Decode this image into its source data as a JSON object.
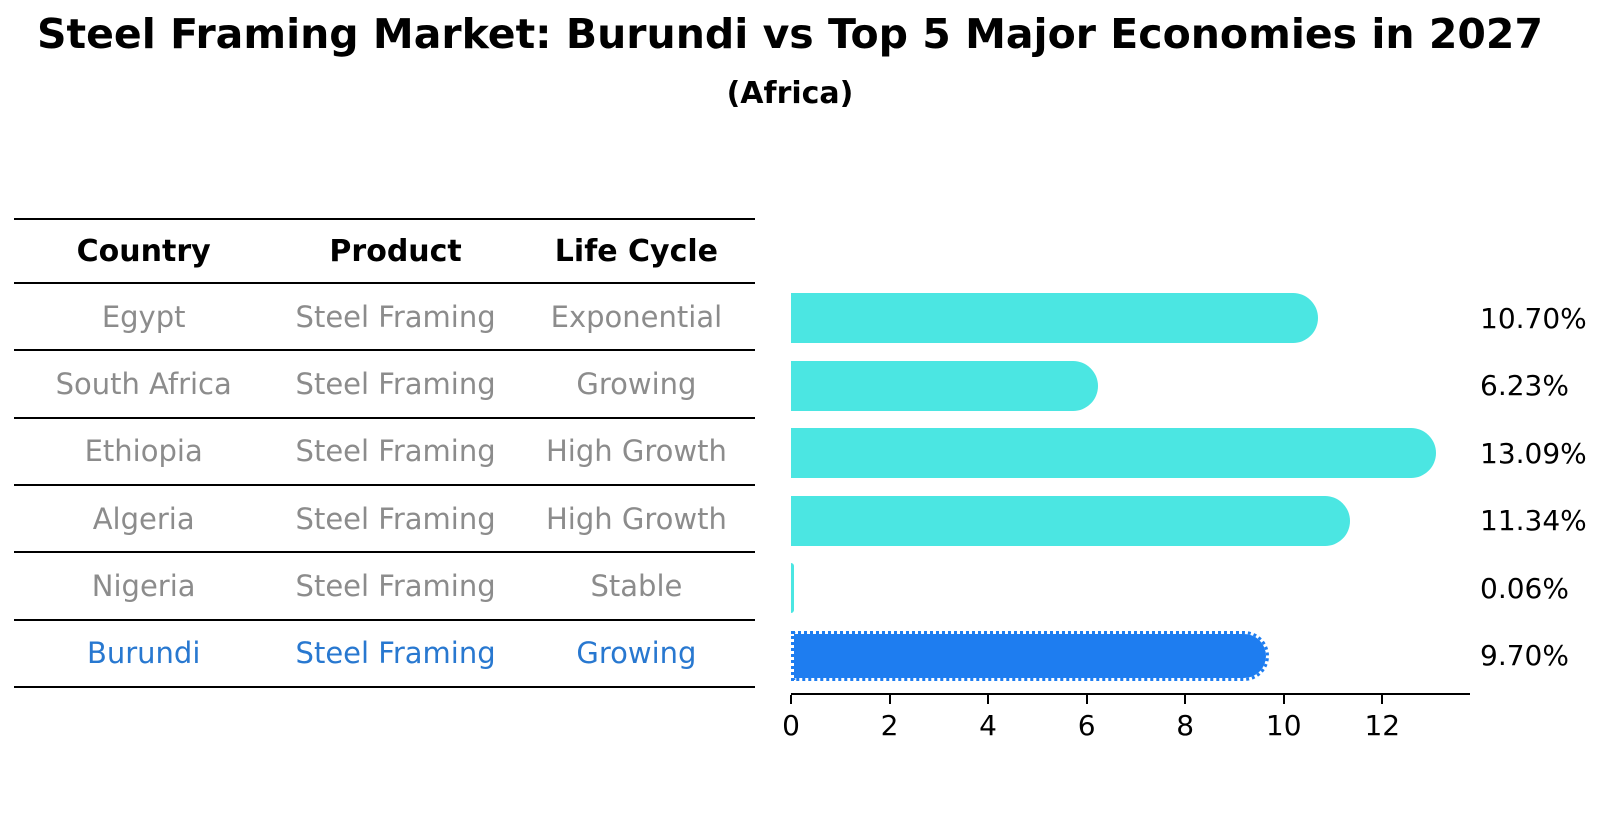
{
  "title": "Steel Framing Market: Burundi vs Top 5 Major Economies in 2027",
  "subtitle": "(Africa)",
  "table": {
    "headers": [
      "Country",
      "Product",
      "Life Cycle"
    ],
    "rows": [
      {
        "country": "Egypt",
        "product": "Steel Framing",
        "life_cycle": "Exponential"
      },
      {
        "country": "South Africa",
        "product": "Steel Framing",
        "life_cycle": "Growing"
      },
      {
        "country": "Ethiopia",
        "product": "Steel Framing",
        "life_cycle": "High Growth"
      },
      {
        "country": "Algeria",
        "product": "Steel Framing",
        "life_cycle": "High Growth"
      },
      {
        "country": "Nigeria",
        "product": "Steel Framing",
        "life_cycle": "Stable"
      },
      {
        "country": "Burundi",
        "product": "Steel Framing",
        "life_cycle": "Growing"
      }
    ]
  },
  "chart_data": {
    "type": "bar",
    "orientation": "horizontal",
    "title": "Steel Framing Market: Burundi vs Top 5 Major Economies in 2027",
    "subtitle": "(Africa)",
    "categories": [
      "Egypt",
      "South Africa",
      "Ethiopia",
      "Algeria",
      "Nigeria",
      "Burundi"
    ],
    "values": [
      10.7,
      6.23,
      13.09,
      11.34,
      0.06,
      9.7
    ],
    "value_labels": [
      "10.70%",
      "6.23%",
      "13.09%",
      "11.34%",
      "0.06%",
      "9.70%"
    ],
    "highlight_category": "Burundi",
    "highlight_index": 5,
    "xticks": [
      0,
      2,
      4,
      6,
      8,
      10,
      12
    ],
    "xtick_labels": [
      "0",
      "2",
      "4",
      "6",
      "8",
      "10",
      "12"
    ],
    "xlim": [
      0,
      13.78
    ],
    "grid": false,
    "legend": false,
    "colors": {
      "bar_default": "#4BE6E2",
      "bar_highlight": "#1E7DF0",
      "highlight_text": "#2878D0",
      "table_text": "#8C8C8C",
      "axis_text": "#000000"
    }
  }
}
